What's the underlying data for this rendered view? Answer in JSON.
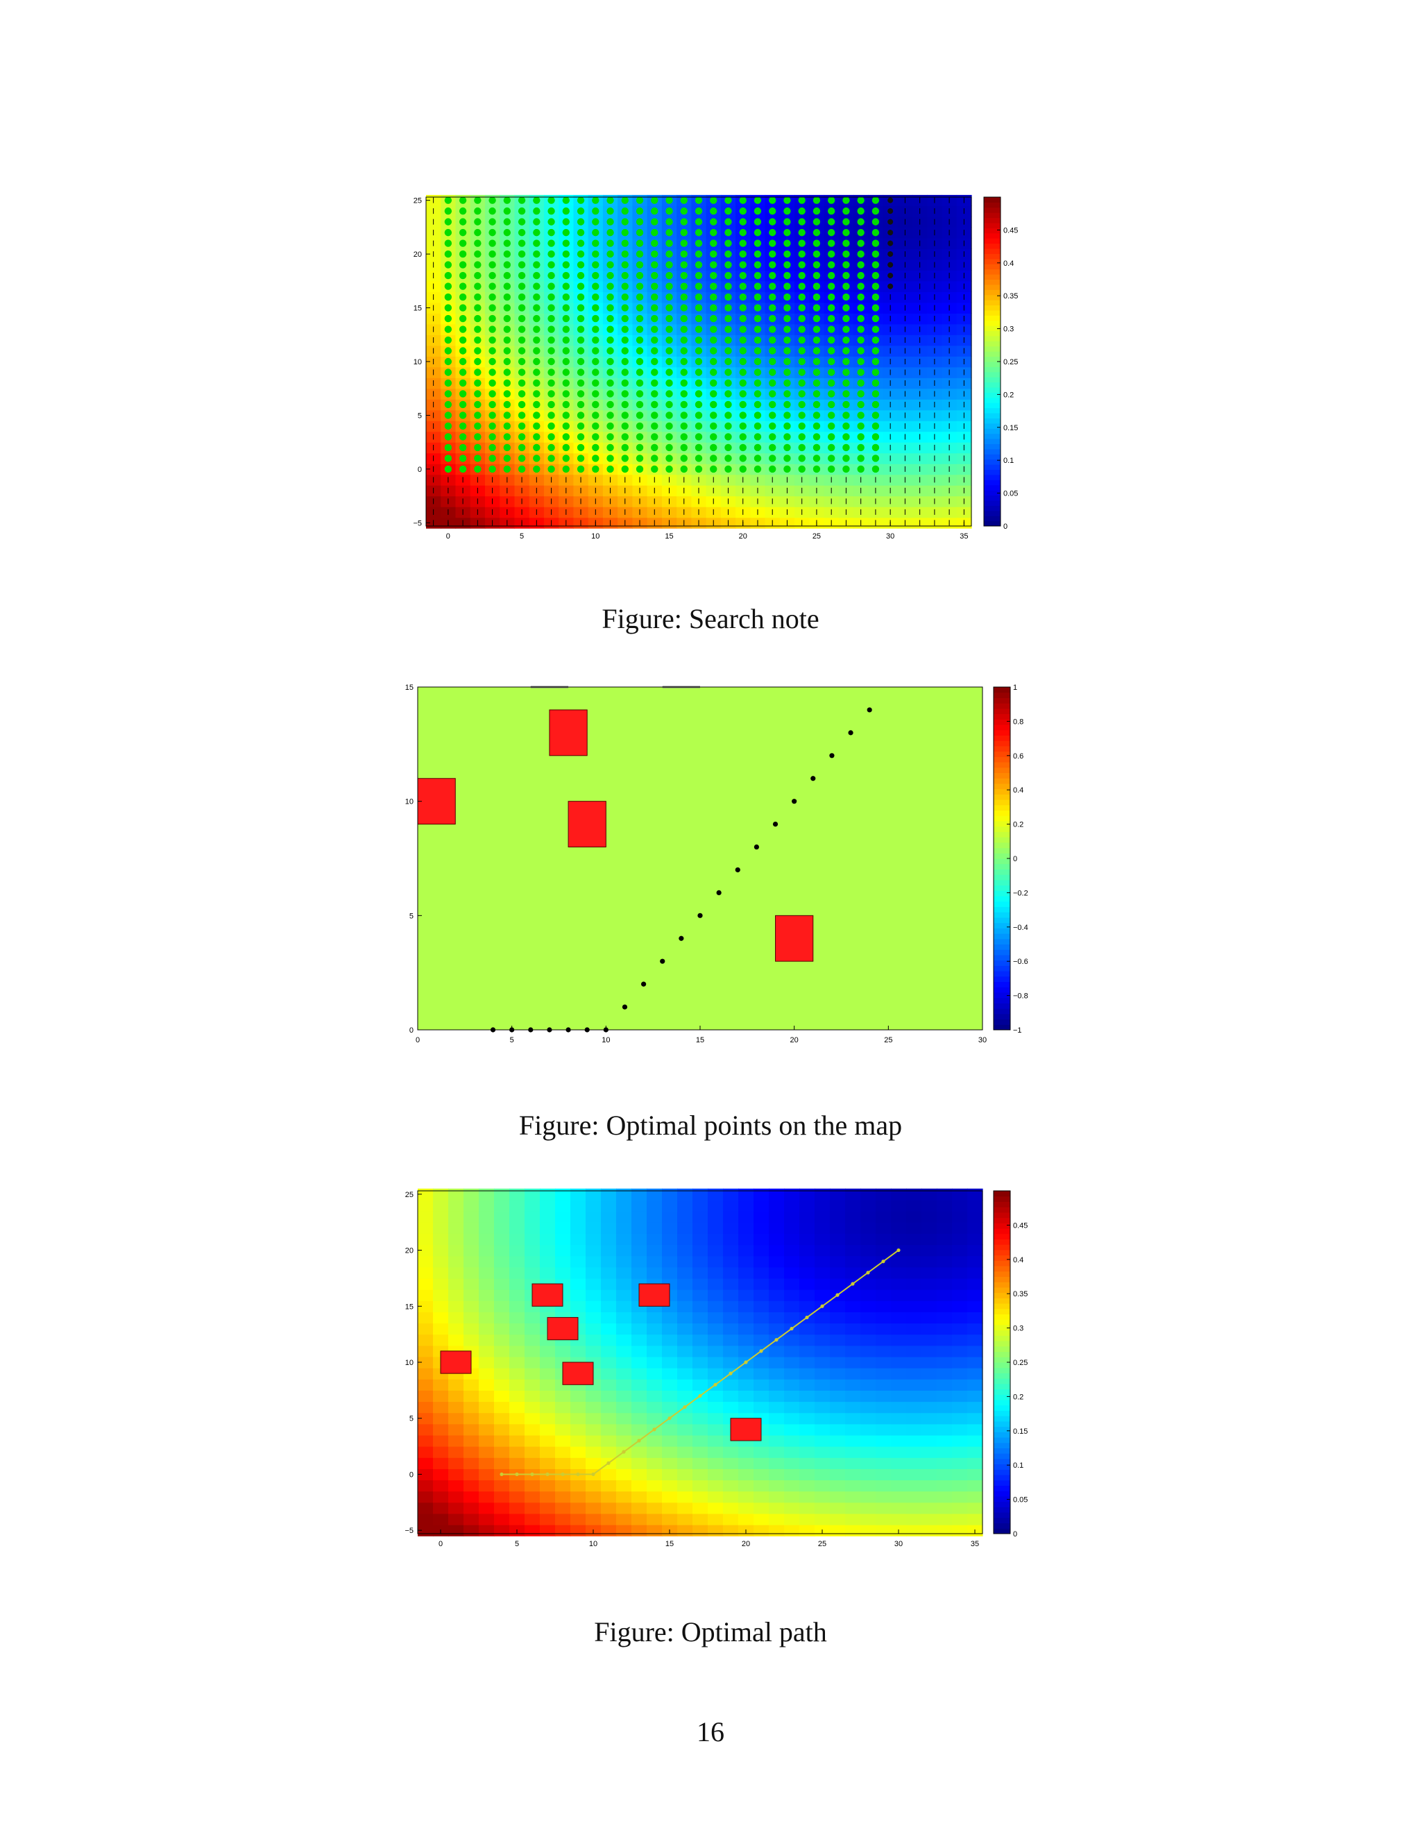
{
  "page": {
    "number": "16"
  },
  "figures": [
    {
      "caption": "Figure: Search note"
    },
    {
      "caption": "Figure: Optimal points on the map"
    },
    {
      "caption": "Figure: Optimal path"
    }
  ],
  "chart_data": [
    {
      "type": "heatmap",
      "title": "",
      "xlabel": "",
      "ylabel": "",
      "xlim": [
        -1.5,
        35.5
      ],
      "ylim": [
        -5.3,
        25.3
      ],
      "xticks": [
        0,
        5,
        10,
        15,
        20,
        25,
        30,
        35
      ],
      "yticks": [
        -5,
        0,
        5,
        10,
        15,
        20,
        25
      ],
      "colorbar": {
        "range": [
          0,
          0.5
        ],
        "ticks": [
          0,
          0.05,
          0.1,
          0.15,
          0.2,
          0.25,
          0.3,
          0.35,
          0.4,
          0.45
        ]
      },
      "field": "distance-based cost, high near (-1,-5), low near (35,25)",
      "search_nodes": {
        "x_range": [
          0,
          29
        ],
        "y_range": [
          0,
          25
        ],
        "color": "#00dd00"
      },
      "arrows": {
        "description": "upward vector field on the grid",
        "color": "#000000"
      }
    },
    {
      "type": "scatter",
      "title": "",
      "xlabel": "",
      "ylabel": "",
      "xlim": [
        0,
        30
      ],
      "ylim": [
        0,
        15
      ],
      "xticks": [
        0,
        5,
        10,
        15,
        20,
        25,
        30
      ],
      "yticks": [
        0,
        5,
        10,
        15
      ],
      "colorbar": {
        "range": [
          -1,
          1
        ],
        "ticks": [
          -1,
          -0.8,
          -0.6,
          -0.4,
          -0.2,
          0,
          0.2,
          0.4,
          0.6,
          0.8,
          1
        ]
      },
      "background_value": 0.1,
      "obstacles": [
        {
          "x": [
            0,
            2
          ],
          "y": [
            9,
            11
          ]
        },
        {
          "x": [
            7,
            9
          ],
          "y": [
            12,
            14
          ]
        },
        {
          "x": [
            8,
            10
          ],
          "y": [
            8,
            10
          ]
        },
        {
          "x": [
            19,
            21
          ],
          "y": [
            3,
            5
          ]
        }
      ],
      "points": {
        "x": [
          4,
          5,
          6,
          7,
          8,
          9,
          10,
          11,
          12,
          13,
          14,
          15,
          16,
          17,
          18,
          19,
          20,
          21,
          22,
          23,
          24
        ],
        "y": [
          0,
          0,
          0,
          0,
          0,
          0,
          0,
          1,
          2,
          3,
          4,
          5,
          6,
          7,
          8,
          9,
          10,
          11,
          12,
          13,
          14
        ]
      }
    },
    {
      "type": "heatmap",
      "title": "",
      "xlabel": "",
      "ylabel": "",
      "xlim": [
        -1.5,
        35.5
      ],
      "ylim": [
        -5.3,
        25.3
      ],
      "xticks": [
        0,
        5,
        10,
        15,
        20,
        25,
        30,
        35
      ],
      "yticks": [
        -5,
        0,
        5,
        10,
        15,
        20,
        25
      ],
      "colorbar": {
        "range": [
          0,
          0.5
        ],
        "ticks": [
          0,
          0.05,
          0.1,
          0.15,
          0.2,
          0.25,
          0.3,
          0.35,
          0.4,
          0.45
        ]
      },
      "obstacles": [
        {
          "x": [
            0,
            2
          ],
          "y": [
            9,
            11
          ]
        },
        {
          "x": [
            6,
            8
          ],
          "y": [
            15,
            17
          ]
        },
        {
          "x": [
            7,
            9
          ],
          "y": [
            12,
            14
          ]
        },
        {
          "x": [
            8,
            10
          ],
          "y": [
            8,
            10
          ]
        },
        {
          "x": [
            13,
            15
          ],
          "y": [
            15,
            17
          ]
        },
        {
          "x": [
            19,
            21
          ],
          "y": [
            3,
            5
          ]
        }
      ],
      "path": {
        "x": [
          4,
          5,
          6,
          7,
          8,
          9,
          10,
          11,
          12,
          13,
          14,
          15,
          16,
          17,
          18,
          19,
          20,
          21,
          22,
          23,
          24,
          25,
          26,
          27,
          28,
          29,
          30
        ],
        "y": [
          0,
          0,
          0,
          0,
          0,
          0,
          0,
          1,
          2,
          3,
          4,
          5,
          6,
          7,
          8,
          9,
          10,
          11,
          12,
          13,
          14,
          15,
          16,
          17,
          18,
          19,
          20
        ],
        "color": "#cccc33"
      }
    }
  ]
}
